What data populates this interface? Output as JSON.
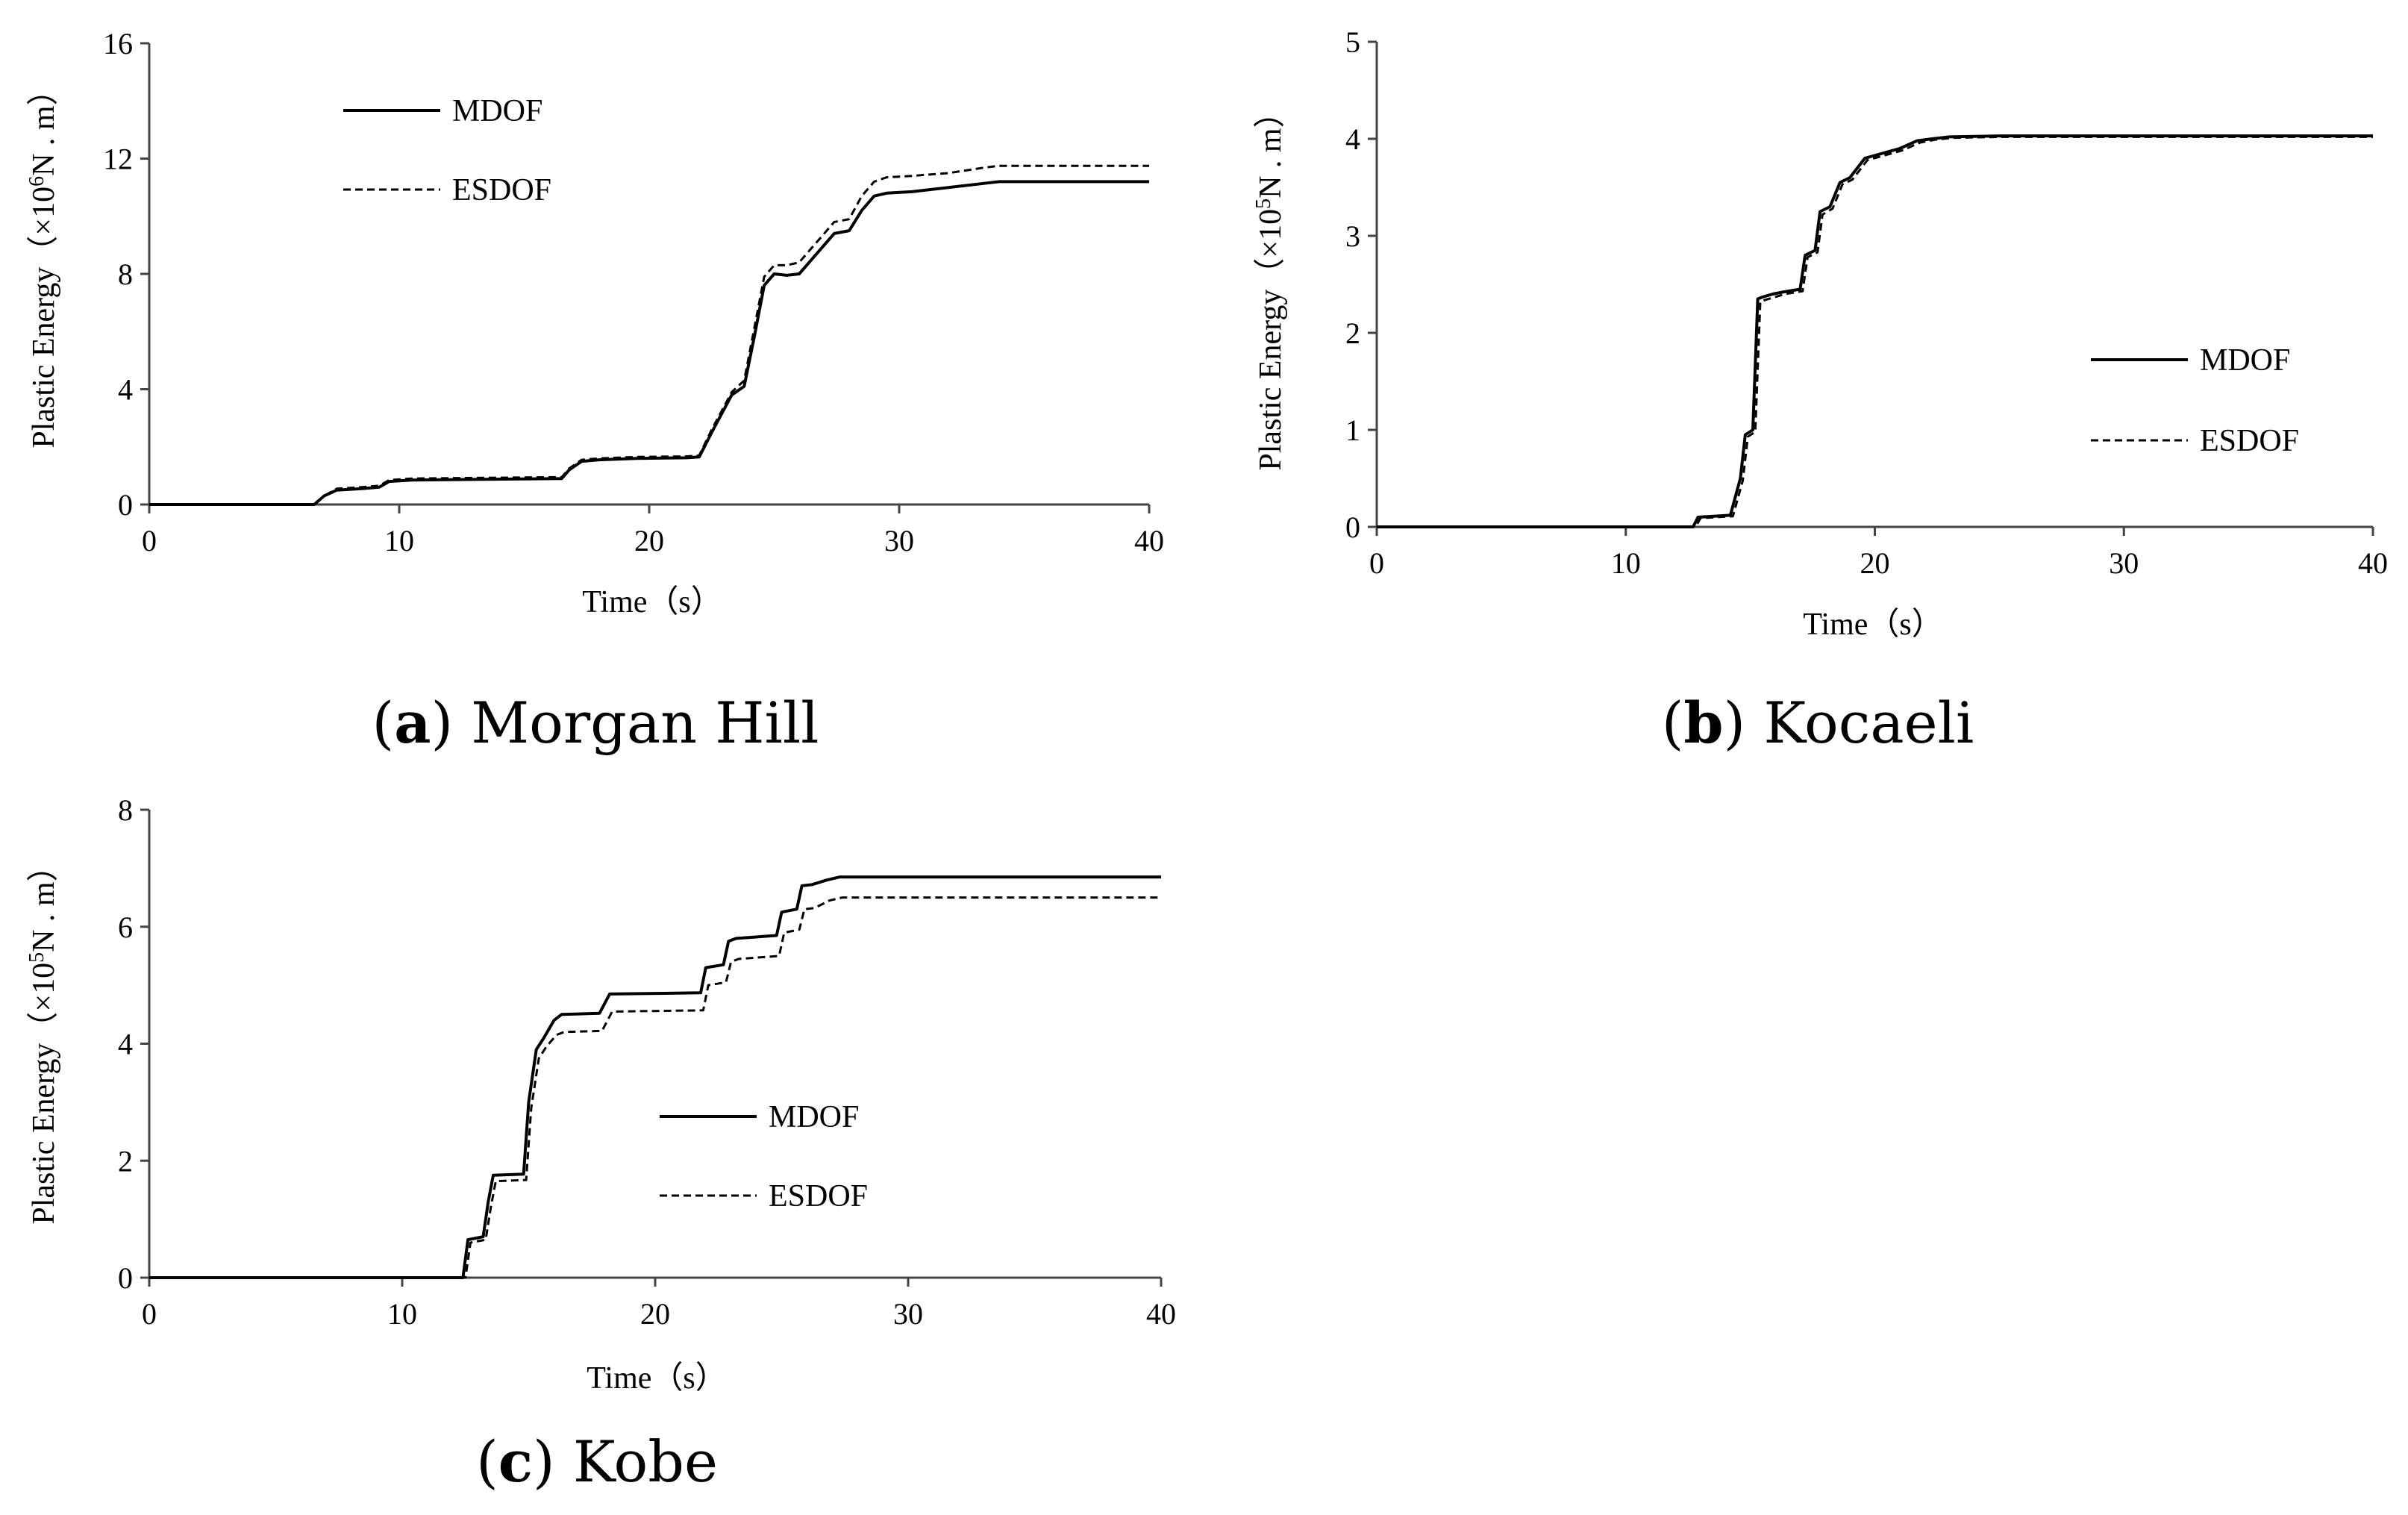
{
  "chart_data": [
    {
      "type": "line",
      "id": "a",
      "caption_letter": "a",
      "caption_name": "Morgan Hill",
      "title": "(a) Morgan Hill",
      "xlabel": "Time（s）",
      "ylabel_prefix": "Plastic Energy（×10",
      "ylabel_sup": "6",
      "ylabel_suffix": "N . m）",
      "xlim": [
        0,
        40
      ],
      "ylim": [
        0,
        16
      ],
      "xticks": [
        "0",
        "10",
        "20",
        "30",
        "40"
      ],
      "yticks": [
        "0",
        "4",
        "8",
        "12",
        "16"
      ],
      "legend_position": "top-left",
      "series": [
        {
          "name": "MDOF",
          "style": "solid",
          "x": [
            0,
            6.6,
            7,
            7.5,
            8.5,
            9.2,
            9.6,
            10.5,
            16.5,
            16.8,
            17.3,
            18,
            19.5,
            21.5,
            22,
            22.5,
            23.3,
            23.8,
            24.2,
            24.6,
            25,
            25.5,
            26,
            26.4,
            26.9,
            27.4,
            28,
            28.5,
            29,
            29.5,
            30.5,
            32,
            33.5,
            34,
            40
          ],
          "y": [
            0,
            0,
            0.3,
            0.5,
            0.55,
            0.6,
            0.8,
            0.85,
            0.9,
            1.2,
            1.5,
            1.55,
            1.6,
            1.62,
            1.65,
            2.5,
            3.8,
            4.1,
            5.8,
            7.6,
            8.0,
            7.95,
            8.0,
            8.4,
            8.9,
            9.4,
            9.5,
            10.2,
            10.7,
            10.8,
            10.85,
            11.0,
            11.15,
            11.2,
            11.2
          ]
        },
        {
          "name": "ESDOF",
          "style": "dashed",
          "x": [
            0,
            6.6,
            7,
            7.5,
            8.5,
            9.2,
            9.6,
            10.5,
            16.5,
            16.8,
            17.3,
            18,
            19.5,
            21.5,
            22,
            22.5,
            23.3,
            23.8,
            24.2,
            24.6,
            25,
            25.5,
            26,
            26.4,
            26.9,
            27.4,
            28,
            28.5,
            29,
            29.5,
            30.5,
            32,
            33.5,
            34,
            40
          ],
          "y": [
            0,
            0,
            0.3,
            0.55,
            0.6,
            0.65,
            0.85,
            0.9,
            0.95,
            1.25,
            1.55,
            1.6,
            1.65,
            1.67,
            1.7,
            2.6,
            3.9,
            4.3,
            6.1,
            7.9,
            8.3,
            8.3,
            8.4,
            8.8,
            9.3,
            9.8,
            9.9,
            10.7,
            11.2,
            11.35,
            11.4,
            11.5,
            11.7,
            11.75,
            11.75
          ]
        }
      ]
    },
    {
      "type": "line",
      "id": "b",
      "caption_letter": "b",
      "caption_name": "Kocaeli",
      "title": "(b) Kocaeli",
      "xlabel": "Time（s）",
      "ylabel_prefix": "Plastic Energy（×10",
      "ylabel_sup": "5",
      "ylabel_suffix": "N . m）",
      "xlim": [
        0,
        40
      ],
      "ylim": [
        0,
        5
      ],
      "xticks": [
        "0",
        "10",
        "20",
        "30",
        "40"
      ],
      "yticks": [
        "0",
        "1",
        "2",
        "3",
        "4",
        "5"
      ],
      "legend_position": "center-right",
      "series": [
        {
          "name": "MDOF",
          "style": "solid",
          "x": [
            0,
            12.7,
            12.9,
            14.2,
            14.6,
            14.8,
            15.1,
            15.3,
            15.5,
            15.9,
            16.3,
            17.0,
            17.2,
            17.6,
            17.8,
            18.2,
            18.6,
            19.0,
            19.6,
            20.3,
            21.0,
            21.7,
            22.3,
            23.0,
            25.0,
            40
          ],
          "y": [
            0,
            0,
            0.1,
            0.12,
            0.5,
            0.95,
            1.0,
            2.35,
            2.37,
            2.4,
            2.42,
            2.45,
            2.8,
            2.85,
            3.25,
            3.3,
            3.55,
            3.6,
            3.8,
            3.85,
            3.9,
            3.98,
            4.0,
            4.02,
            4.03,
            4.03
          ]
        },
        {
          "name": "ESDOF",
          "style": "dashed",
          "x": [
            0,
            12.8,
            13.0,
            14.3,
            14.7,
            14.9,
            15.2,
            15.4,
            15.6,
            16.0,
            16.4,
            17.1,
            17.3,
            17.7,
            17.9,
            18.3,
            18.7,
            19.1,
            19.7,
            20.4,
            21.1,
            21.8,
            22.4,
            23.1,
            25.1,
            40
          ],
          "y": [
            0,
            0,
            0.09,
            0.11,
            0.48,
            0.93,
            0.98,
            2.32,
            2.34,
            2.37,
            2.4,
            2.43,
            2.78,
            2.83,
            3.22,
            3.28,
            3.53,
            3.58,
            3.78,
            3.83,
            3.88,
            3.96,
            3.99,
            4.01,
            4.02,
            4.02
          ]
        }
      ]
    },
    {
      "type": "line",
      "id": "c",
      "caption_letter": "c",
      "caption_name": "Kobe",
      "title": "(c) Kobe",
      "xlabel": "Time（s）",
      "ylabel_prefix": "Plastic Energy（×10",
      "ylabel_sup": "5",
      "ylabel_suffix": "N . m）",
      "xlim": [
        0,
        40
      ],
      "ylim": [
        0,
        8
      ],
      "xticks": [
        "0",
        "10",
        "20",
        "30",
        "40"
      ],
      "yticks": [
        "0",
        "2",
        "4",
        "6",
        "8"
      ],
      "legend_position": "center",
      "series": [
        {
          "name": "MDOF",
          "style": "solid",
          "x": [
            0,
            12.4,
            12.6,
            13.2,
            13.4,
            13.6,
            14.8,
            15.0,
            15.3,
            15.6,
            16.0,
            16.3,
            17.8,
            18.2,
            21.8,
            22.0,
            22.7,
            22.9,
            23.2,
            24.8,
            25.0,
            25.6,
            25.8,
            26.2,
            26.8,
            27.3,
            40
          ],
          "y": [
            0,
            0,
            0.65,
            0.7,
            1.3,
            1.75,
            1.77,
            3.0,
            3.9,
            4.1,
            4.4,
            4.5,
            4.52,
            4.85,
            4.87,
            5.3,
            5.35,
            5.75,
            5.8,
            5.85,
            6.25,
            6.3,
            6.7,
            6.72,
            6.8,
            6.85,
            6.85
          ]
        },
        {
          "name": "ESDOF",
          "style": "dashed",
          "x": [
            0,
            12.5,
            12.7,
            13.3,
            13.5,
            13.7,
            14.9,
            15.1,
            15.4,
            15.7,
            16.1,
            16.4,
            17.9,
            18.3,
            21.9,
            22.1,
            22.8,
            23.0,
            23.3,
            24.9,
            25.1,
            25.7,
            25.9,
            26.3,
            26.9,
            27.4,
            40
          ],
          "y": [
            0,
            0,
            0.6,
            0.65,
            1.2,
            1.65,
            1.67,
            2.9,
            3.75,
            3.95,
            4.15,
            4.2,
            4.22,
            4.55,
            4.57,
            5.0,
            5.05,
            5.4,
            5.45,
            5.5,
            5.9,
            5.95,
            6.3,
            6.32,
            6.45,
            6.5,
            6.5
          ]
        }
      ]
    }
  ]
}
